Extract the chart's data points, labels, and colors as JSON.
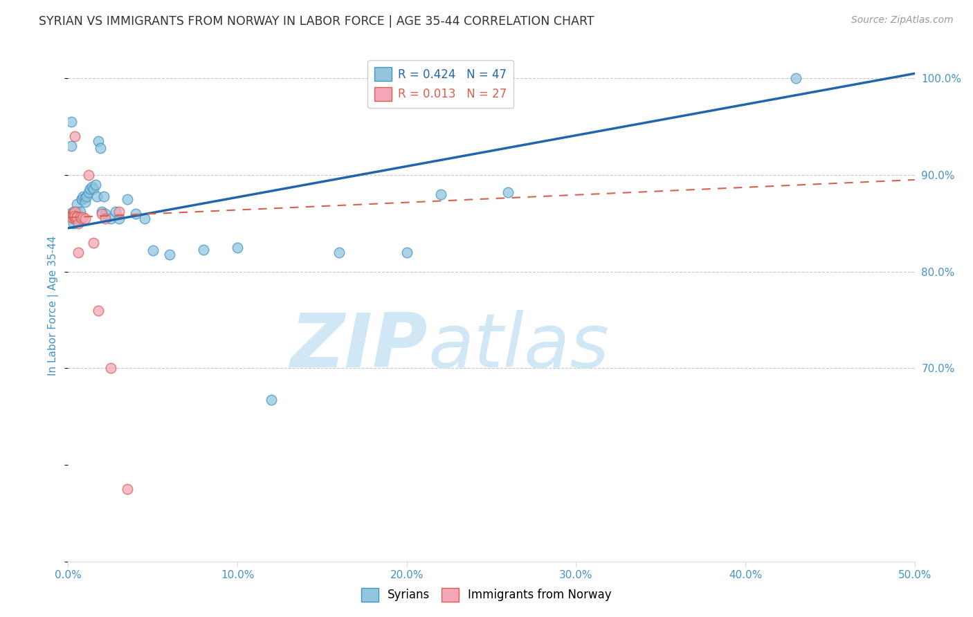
{
  "title": "SYRIAN VS IMMIGRANTS FROM NORWAY IN LABOR FORCE | AGE 35-44 CORRELATION CHART",
  "source": "Source: ZipAtlas.com",
  "ylabel": "In Labor Force | Age 35-44",
  "xlim": [
    0.0,
    0.5
  ],
  "ylim": [
    0.5,
    1.03
  ],
  "xticks": [
    0.0,
    0.1,
    0.2,
    0.3,
    0.4,
    0.5
  ],
  "xtick_labels": [
    "0.0%",
    "10.0%",
    "20.0%",
    "30.0%",
    "40.0%",
    "50.0%"
  ],
  "yticks": [
    0.7,
    0.8,
    0.9,
    1.0
  ],
  "ytick_labels": [
    "70.0%",
    "80.0%",
    "90.0%",
    "100.0%"
  ],
  "blue_R": 0.424,
  "blue_N": 47,
  "pink_R": 0.013,
  "pink_N": 27,
  "blue_color": "#92c5de",
  "pink_color": "#f4a6b8",
  "blue_edge_color": "#4393c3",
  "pink_edge_color": "#d6604d",
  "blue_line_color": "#2166ac",
  "pink_line_color": "#d6604d",
  "watermark_zip": "ZIP",
  "watermark_atlas": "atlas",
  "watermark_color": "#d0e8f5",
  "title_color": "#333333",
  "tick_label_color": "#4393c3",
  "grid_color": "#c8c8c8",
  "blue_x": [
    0.001,
    0.002,
    0.002,
    0.003,
    0.003,
    0.003,
    0.004,
    0.004,
    0.004,
    0.005,
    0.005,
    0.006,
    0.006,
    0.007,
    0.008,
    0.008,
    0.009,
    0.01,
    0.01,
    0.011,
    0.012,
    0.013,
    0.014,
    0.015,
    0.016,
    0.017,
    0.018,
    0.019,
    0.02,
    0.021,
    0.022,
    0.025,
    0.028,
    0.03,
    0.035,
    0.04,
    0.045,
    0.05,
    0.06,
    0.08,
    0.1,
    0.12,
    0.16,
    0.2,
    0.22,
    0.26,
    0.43
  ],
  "blue_y": [
    0.86,
    0.955,
    0.93,
    0.85,
    0.862,
    0.855,
    0.858,
    0.86,
    0.86,
    0.862,
    0.87,
    0.855,
    0.855,
    0.862,
    0.875,
    0.875,
    0.878,
    0.876,
    0.872,
    0.878,
    0.882,
    0.886,
    0.888,
    0.886,
    0.89,
    0.878,
    0.935,
    0.928,
    0.862,
    0.878,
    0.86,
    0.855,
    0.862,
    0.855,
    0.875,
    0.86,
    0.855,
    0.822,
    0.818,
    0.823,
    0.825,
    0.667,
    0.82,
    0.82,
    0.88,
    0.882,
    1.0
  ],
  "pink_x": [
    0.001,
    0.001,
    0.002,
    0.002,
    0.003,
    0.003,
    0.003,
    0.004,
    0.004,
    0.004,
    0.004,
    0.005,
    0.005,
    0.006,
    0.006,
    0.007,
    0.008,
    0.009,
    0.01,
    0.012,
    0.015,
    0.018,
    0.02,
    0.022,
    0.025,
    0.03,
    0.035
  ],
  "pink_y": [
    0.858,
    0.857,
    0.858,
    0.856,
    0.86,
    0.858,
    0.857,
    0.862,
    0.856,
    0.858,
    0.94,
    0.857,
    0.856,
    0.82,
    0.85,
    0.856,
    0.855,
    0.856,
    0.855,
    0.9,
    0.83,
    0.76,
    0.86,
    0.855,
    0.7,
    0.862,
    0.575
  ],
  "blue_trend_x": [
    0.0,
    0.5
  ],
  "blue_trend_y": [
    0.845,
    1.005
  ],
  "pink_trend_x": [
    0.0,
    0.5
  ],
  "pink_trend_y": [
    0.856,
    0.895
  ]
}
